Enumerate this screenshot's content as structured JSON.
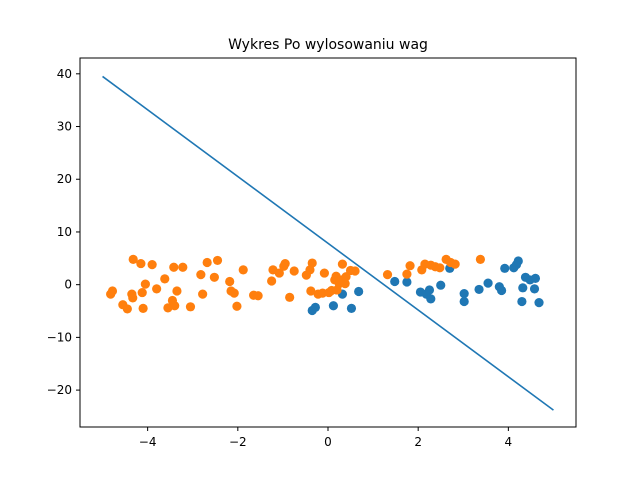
{
  "chart_data": {
    "type": "scatter",
    "title": "Wykres Po wylosowaniu wag",
    "xlabel": "",
    "ylabel": "",
    "xlim": [
      -5.5,
      5.5
    ],
    "ylim": [
      -27.0,
      43.0
    ],
    "x_ticks": [
      -4,
      -2,
      0,
      2,
      4
    ],
    "y_ticks": [
      -20,
      -10,
      0,
      10,
      20,
      30,
      40
    ],
    "x_tick_labels": [
      "−4",
      "−2",
      "0",
      "2",
      "4"
    ],
    "y_tick_labels": [
      "−20",
      "−10",
      "0",
      "10",
      "20",
      "30",
      "40"
    ],
    "grid": false,
    "legend": "none",
    "line": {
      "color": "#1f77b4",
      "points": [
        [
          -5.0,
          39.5
        ],
        [
          5.0,
          -23.8
        ]
      ]
    },
    "series": [
      {
        "color": "#1f77b4",
        "points": [
          [
            -0.35,
            -4.9
          ],
          [
            -0.28,
            -4.3
          ],
          [
            0.12,
            -4.0
          ],
          [
            0.32,
            -1.8
          ],
          [
            0.52,
            -4.5
          ],
          [
            0.68,
            -1.3
          ],
          [
            1.48,
            0.6
          ],
          [
            1.75,
            0.5
          ],
          [
            2.05,
            -1.4
          ],
          [
            2.18,
            -1.8
          ],
          [
            2.25,
            -1.0
          ],
          [
            2.28,
            -2.7
          ],
          [
            2.5,
            -0.1
          ],
          [
            2.7,
            3.1
          ],
          [
            3.02,
            -1.7
          ],
          [
            3.02,
            -3.2
          ],
          [
            3.35,
            -0.9
          ],
          [
            3.55,
            0.3
          ],
          [
            3.8,
            -0.4
          ],
          [
            3.85,
            -1.1
          ],
          [
            3.92,
            3.1
          ],
          [
            4.12,
            3.2
          ],
          [
            4.18,
            3.8
          ],
          [
            4.22,
            4.5
          ],
          [
            4.3,
            -3.2
          ],
          [
            4.32,
            -0.6
          ],
          [
            4.38,
            1.4
          ],
          [
            4.48,
            0.9
          ],
          [
            4.58,
            -0.8
          ],
          [
            4.6,
            1.2
          ],
          [
            4.68,
            -3.4
          ]
        ]
      },
      {
        "color": "#ff7f0e",
        "points": [
          [
            -4.82,
            -1.8
          ],
          [
            -4.78,
            -1.2
          ],
          [
            -4.55,
            -3.8
          ],
          [
            -4.45,
            -4.6
          ],
          [
            -4.35,
            -1.8
          ],
          [
            -4.33,
            -2.5
          ],
          [
            -4.32,
            4.8
          ],
          [
            -4.15,
            4.0
          ],
          [
            -4.12,
            -1.5
          ],
          [
            -4.1,
            -4.5
          ],
          [
            -4.05,
            0.1
          ],
          [
            -3.9,
            3.8
          ],
          [
            -3.8,
            -0.8
          ],
          [
            -3.62,
            1.1
          ],
          [
            -3.55,
            -4.4
          ],
          [
            -3.45,
            -3.0
          ],
          [
            -3.42,
            3.3
          ],
          [
            -3.4,
            -4.0
          ],
          [
            -3.35,
            -1.2
          ],
          [
            -3.22,
            3.3
          ],
          [
            -3.05,
            -4.2
          ],
          [
            -2.82,
            1.9
          ],
          [
            -2.78,
            -1.8
          ],
          [
            -2.68,
            4.2
          ],
          [
            -2.52,
            1.4
          ],
          [
            -2.45,
            4.6
          ],
          [
            -2.18,
            0.6
          ],
          [
            -2.15,
            -1.2
          ],
          [
            -2.08,
            -1.6
          ],
          [
            -2.02,
            -4.1
          ],
          [
            -1.88,
            2.8
          ],
          [
            -1.65,
            -2.0
          ],
          [
            -1.55,
            -2.1
          ],
          [
            -1.25,
            0.7
          ],
          [
            -1.22,
            2.8
          ],
          [
            -1.08,
            2.2
          ],
          [
            -0.98,
            3.5
          ],
          [
            -0.95,
            4.0
          ],
          [
            -0.85,
            -2.4
          ],
          [
            -0.75,
            2.6
          ],
          [
            -0.48,
            1.8
          ],
          [
            -0.4,
            2.8
          ],
          [
            -0.38,
            -1.2
          ],
          [
            -0.35,
            4.1
          ],
          [
            -0.22,
            -1.8
          ],
          [
            -0.12,
            -1.6
          ],
          [
            -0.08,
            2.2
          ],
          [
            0.02,
            -1.5
          ],
          [
            0.08,
            -1.1
          ],
          [
            0.15,
            0.9
          ],
          [
            0.18,
            1.6
          ],
          [
            0.2,
            -1.0
          ],
          [
            0.25,
            0.2
          ],
          [
            0.3,
            0.9
          ],
          [
            0.32,
            3.9
          ],
          [
            0.38,
            0.2
          ],
          [
            0.4,
            1.5
          ],
          [
            0.5,
            2.7
          ],
          [
            0.6,
            2.6
          ],
          [
            1.32,
            1.9
          ],
          [
            1.75,
            2.0
          ],
          [
            1.82,
            3.6
          ],
          [
            2.08,
            2.8
          ],
          [
            2.15,
            3.9
          ],
          [
            2.28,
            3.7
          ],
          [
            2.38,
            3.4
          ],
          [
            2.48,
            3.2
          ],
          [
            2.62,
            4.8
          ],
          [
            2.72,
            4.2
          ],
          [
            2.82,
            3.9
          ],
          [
            3.38,
            4.8
          ]
        ]
      }
    ]
  }
}
